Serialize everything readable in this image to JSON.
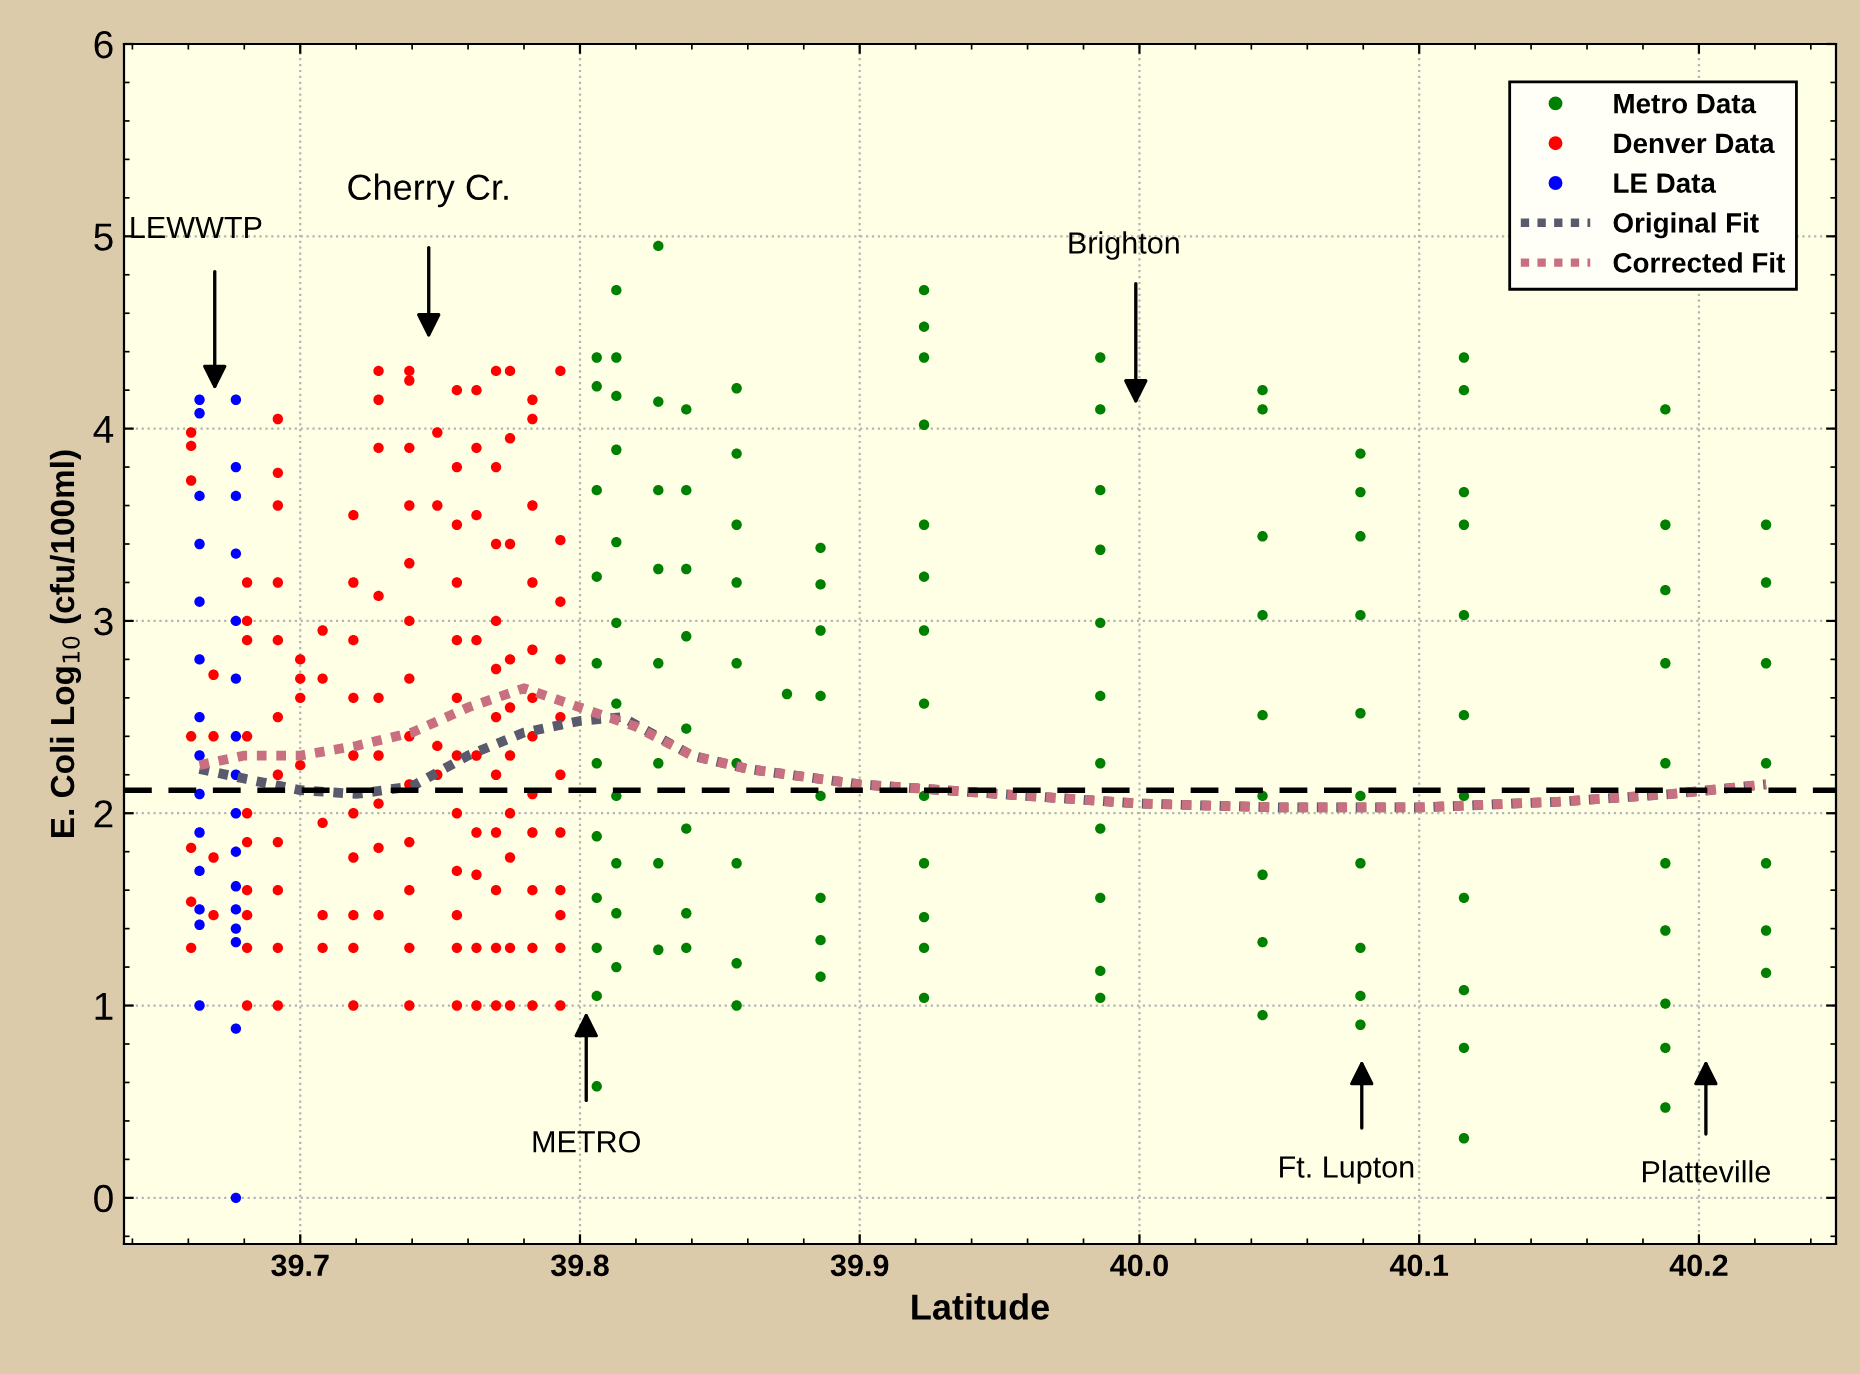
{
  "chart_data": {
    "type": "scatter",
    "xlabel": "Latitude",
    "ylabel": "E. Coli Log$_{10}$ (cfu/100ml)",
    "xlim": [
      39.637,
      40.249
    ],
    "ylim": [
      -0.24,
      6
    ],
    "xticks": [
      39.7,
      39.8,
      39.9,
      {
        "value": 40.0,
        "label": "40.0"
      },
      40.1,
      40.2
    ],
    "yticks": [
      0,
      1,
      2,
      3,
      4,
      5,
      6
    ],
    "grid": true,
    "legend": "top right",
    "series": [
      {
        "name": "Metro Data",
        "color": "#008000",
        "marker": "circle",
        "x": [
          39.806,
          39.806,
          39.806,
          39.806,
          39.806,
          39.806,
          39.806,
          39.806,
          39.806,
          39.806,
          39.806,
          39.813,
          39.813,
          39.813,
          39.813,
          39.813,
          39.813,
          39.813,
          39.813,
          39.813,
          39.813,
          39.813,
          39.828,
          39.828,
          39.828,
          39.828,
          39.828,
          39.828,
          39.828,
          39.828,
          39.838,
          39.838,
          39.838,
          39.838,
          39.838,
          39.838,
          39.838,
          39.838,
          39.856,
          39.856,
          39.856,
          39.856,
          39.856,
          39.856,
          39.856,
          39.856,
          39.856,
          39.874,
          39.886,
          39.886,
          39.886,
          39.886,
          39.886,
          39.886,
          39.886,
          39.886,
          39.923,
          39.923,
          39.923,
          39.923,
          39.923,
          39.923,
          39.923,
          39.923,
          39.923,
          39.923,
          39.923,
          39.923,
          39.923,
          39.986,
          39.986,
          39.986,
          39.986,
          39.986,
          39.986,
          39.986,
          39.986,
          39.986,
          39.986,
          39.986,
          40.044,
          40.044,
          40.044,
          40.044,
          40.044,
          40.044,
          40.044,
          40.044,
          40.044,
          40.079,
          40.079,
          40.079,
          40.079,
          40.079,
          40.079,
          40.079,
          40.079,
          40.079,
          40.079,
          40.116,
          40.116,
          40.116,
          40.116,
          40.116,
          40.116,
          40.116,
          40.116,
          40.116,
          40.116,
          40.116,
          40.188,
          40.188,
          40.188,
          40.188,
          40.188,
          40.188,
          40.188,
          40.188,
          40.188,
          40.188,
          40.224,
          40.224,
          40.224,
          40.224,
          40.224,
          40.224,
          40.224
        ],
        "values": [
          4.37,
          4.22,
          3.68,
          3.23,
          2.78,
          2.26,
          1.88,
          1.56,
          1.3,
          1.05,
          0.58,
          4.72,
          4.37,
          4.17,
          3.89,
          3.41,
          2.99,
          2.57,
          2.09,
          1.74,
          1.48,
          1.2,
          4.95,
          4.14,
          3.68,
          3.27,
          2.78,
          2.26,
          1.74,
          1.29,
          4.1,
          3.68,
          3.27,
          2.92,
          2.44,
          1.92,
          1.48,
          1.3,
          4.21,
          3.87,
          3.5,
          3.2,
          2.78,
          2.26,
          1.74,
          1.22,
          1.0,
          2.62,
          3.38,
          3.19,
          2.95,
          2.61,
          2.09,
          1.56,
          1.34,
          1.15,
          4.72,
          4.53,
          4.37,
          4.02,
          3.5,
          3.23,
          2.95,
          2.57,
          2.09,
          1.74,
          1.46,
          1.3,
          1.04,
          4.37,
          4.1,
          3.68,
          3.37,
          2.99,
          2.61,
          2.26,
          1.92,
          1.56,
          1.18,
          1.04,
          4.2,
          4.1,
          3.44,
          3.03,
          2.51,
          2.09,
          1.68,
          1.33,
          0.95,
          3.87,
          3.67,
          3.44,
          3.03,
          2.52,
          2.09,
          1.74,
          1.3,
          1.05,
          0.9,
          4.37,
          4.2,
          3.67,
          3.5,
          3.03,
          2.51,
          2.09,
          1.56,
          1.08,
          0.78,
          0.31,
          4.1,
          3.5,
          3.16,
          2.78,
          2.26,
          1.74,
          1.39,
          1.01,
          0.78,
          0.47,
          3.5,
          3.2,
          2.78,
          2.26,
          1.74,
          1.39,
          1.17
        ]
      },
      {
        "name": "Denver Data",
        "color": "#ff0000",
        "marker": "circle",
        "x": [
          39.661,
          39.661,
          39.661,
          39.661,
          39.661,
          39.661,
          39.661,
          39.669,
          39.669,
          39.669,
          39.669,
          39.681,
          39.681,
          39.681,
          39.681,
          39.681,
          39.681,
          39.681,
          39.681,
          39.681,
          39.681,
          39.692,
          39.692,
          39.692,
          39.692,
          39.692,
          39.692,
          39.692,
          39.692,
          39.692,
          39.692,
          39.692,
          39.7,
          39.7,
          39.7,
          39.7,
          39.708,
          39.708,
          39.708,
          39.708,
          39.708,
          39.719,
          39.719,
          39.719,
          39.719,
          39.719,
          39.719,
          39.719,
          39.719,
          39.719,
          39.719,
          39.728,
          39.728,
          39.728,
          39.728,
          39.728,
          39.728,
          39.728,
          39.728,
          39.728,
          39.739,
          39.739,
          39.739,
          39.739,
          39.739,
          39.739,
          39.739,
          39.739,
          39.739,
          39.739,
          39.739,
          39.739,
          39.739,
          39.749,
          39.749,
          39.749,
          39.749,
          39.756,
          39.756,
          39.756,
          39.756,
          39.756,
          39.756,
          39.756,
          39.756,
          39.756,
          39.756,
          39.756,
          39.756,
          39.763,
          39.763,
          39.763,
          39.763,
          39.763,
          39.763,
          39.763,
          39.763,
          39.763,
          39.77,
          39.77,
          39.77,
          39.77,
          39.77,
          39.77,
          39.77,
          39.77,
          39.77,
          39.77,
          39.77,
          39.775,
          39.775,
          39.775,
          39.775,
          39.775,
          39.775,
          39.775,
          39.775,
          39.775,
          39.775,
          39.783,
          39.783,
          39.783,
          39.783,
          39.783,
          39.783,
          39.783,
          39.783,
          39.783,
          39.783,
          39.783,
          39.783,
          39.793,
          39.793,
          39.793,
          39.793,
          39.793,
          39.793,
          39.793,
          39.793,
          39.793,
          39.793,
          39.793
        ],
        "values": [
          3.73,
          3.98,
          3.91,
          2.4,
          1.82,
          1.54,
          1.3,
          2.72,
          2.4,
          1.77,
          1.47,
          3.2,
          3.0,
          2.9,
          2.4,
          2.0,
          1.85,
          1.6,
          1.47,
          1.3,
          1.0,
          4.05,
          3.77,
          3.6,
          3.2,
          2.9,
          2.5,
          2.2,
          1.85,
          1.6,
          1.3,
          1.0,
          2.8,
          2.7,
          2.6,
          2.25,
          2.95,
          2.7,
          1.95,
          1.47,
          1.3,
          3.55,
          3.2,
          2.9,
          2.6,
          2.3,
          2.0,
          1.77,
          1.47,
          1.3,
          1.0,
          4.3,
          4.15,
          3.9,
          3.13,
          2.6,
          2.3,
          2.05,
          1.82,
          1.47,
          4.3,
          4.25,
          3.9,
          3.6,
          3.3,
          3.0,
          2.7,
          2.4,
          2.15,
          1.85,
          1.6,
          1.3,
          1.0,
          3.98,
          3.6,
          2.35,
          2.2,
          4.2,
          3.8,
          3.5,
          3.2,
          2.9,
          2.6,
          2.3,
          2.0,
          1.7,
          1.47,
          1.3,
          1.0,
          4.2,
          3.9,
          3.55,
          2.9,
          2.3,
          1.9,
          1.68,
          1.3,
          1.0,
          4.3,
          3.8,
          3.4,
          3.0,
          2.75,
          2.5,
          2.2,
          1.9,
          1.6,
          1.3,
          1.0,
          4.3,
          3.95,
          3.4,
          2.8,
          2.55,
          2.3,
          2.0,
          1.77,
          1.3,
          1.0,
          4.15,
          4.05,
          3.6,
          3.2,
          2.85,
          2.6,
          2.4,
          2.1,
          1.9,
          1.6,
          1.3,
          1.0,
          4.3,
          3.42,
          3.1,
          2.8,
          2.5,
          2.2,
          1.9,
          1.6,
          1.47,
          1.3,
          1.0
        ]
      },
      {
        "name": "LE Data",
        "color": "#0000ff",
        "marker": "circle",
        "x": [
          39.664,
          39.664,
          39.664,
          39.664,
          39.664,
          39.664,
          39.664,
          39.664,
          39.664,
          39.664,
          39.664,
          39.664,
          39.664,
          39.664,
          39.677,
          39.677,
          39.677,
          39.677,
          39.677,
          39.677,
          39.677,
          39.677,
          39.677,
          39.677,
          39.677,
          39.677,
          39.677,
          39.677,
          39.677,
          39.677
        ],
        "values": [
          4.15,
          4.08,
          3.65,
          3.4,
          3.1,
          2.8,
          2.5,
          2.3,
          2.1,
          1.9,
          1.7,
          1.5,
          1.42,
          1.0,
          4.15,
          3.8,
          3.65,
          3.35,
          3.0,
          2.7,
          2.4,
          2.2,
          2.0,
          1.8,
          1.62,
          1.5,
          1.4,
          1.33,
          0.88,
          0.0
        ]
      },
      {
        "name": "Original Fit",
        "color": "#5a5a6e",
        "type": "line",
        "line_style": "dotted",
        "x": [
          39.664,
          39.68,
          39.7,
          39.72,
          39.74,
          39.76,
          39.78,
          39.8,
          39.815,
          39.84,
          39.86,
          39.9,
          39.95,
          40.0,
          40.05,
          40.1,
          40.15,
          40.19,
          40.224
        ],
        "values": [
          2.23,
          2.18,
          2.12,
          2.1,
          2.14,
          2.3,
          2.42,
          2.48,
          2.5,
          2.3,
          2.23,
          2.15,
          2.1,
          2.05,
          2.03,
          2.03,
          2.06,
          2.1,
          2.15
        ]
      },
      {
        "name": "Corrected Fit",
        "color": "#c87080",
        "type": "line",
        "line_style": "dotted",
        "x": [
          39.664,
          39.68,
          39.7,
          39.72,
          39.74,
          39.76,
          39.78,
          39.8,
          39.82,
          39.84,
          39.86,
          39.9,
          39.95,
          40.0,
          40.05,
          40.1,
          40.15,
          40.19,
          40.224
        ],
        "values": [
          2.25,
          2.3,
          2.3,
          2.35,
          2.42,
          2.55,
          2.65,
          2.55,
          2.45,
          2.3,
          2.23,
          2.15,
          2.1,
          2.05,
          2.03,
          2.03,
          2.06,
          2.1,
          2.15
        ]
      }
    ],
    "ref_lines": [
      {
        "axis": "y",
        "value": 2.12,
        "color": "#000000",
        "line_style": "dashed"
      }
    ],
    "annotations": [
      "LEWWTP",
      "Cherry Cr.",
      "METRO",
      "Brighton",
      "Ft. Lupton",
      "Platteville"
    ]
  }
}
